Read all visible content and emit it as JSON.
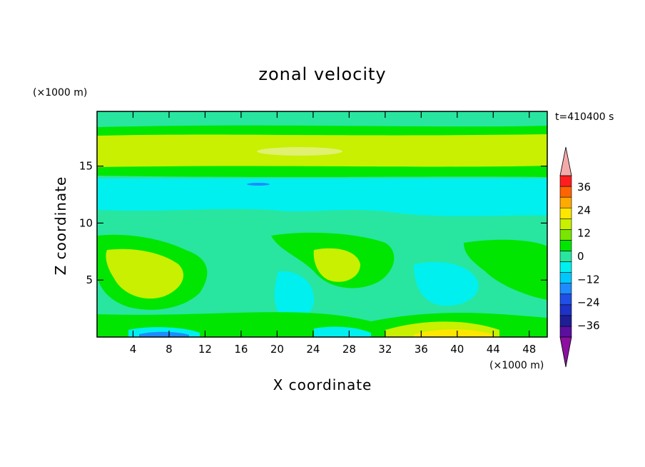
{
  "chart_data": {
    "type": "heatmap",
    "title": "zonal velocity",
    "xlabel": "X coordinate",
    "ylabel": "Z coordinate",
    "x_unit": "(×1000 m)",
    "y_unit": "(×1000 m)",
    "time_label": "t=410400 s",
    "xlim": [
      0,
      50
    ],
    "ylim": [
      0,
      19.8
    ],
    "x_ticks": [
      4,
      8,
      12,
      16,
      20,
      24,
      28,
      32,
      36,
      40,
      44,
      48
    ],
    "y_ticks": [
      5,
      10,
      15
    ],
    "colorbar": {
      "levels": [
        -42,
        -36,
        -30,
        -24,
        -18,
        -12,
        -6,
        0,
        6,
        12,
        18,
        24,
        30,
        36,
        42
      ],
      "tick_values": [
        -36,
        -24,
        -12,
        0,
        12,
        24,
        36
      ],
      "tick_labels": [
        "−36",
        "−24",
        "−12",
        "0",
        "12",
        "24",
        "36"
      ],
      "colors": [
        "#5a0fa0",
        "#1e1e96",
        "#1e32c8",
        "#1e50e6",
        "#1e8cff",
        "#00c8ff",
        "#00f0f0",
        "#28e6a0",
        "#00e600",
        "#78e600",
        "#c8f000",
        "#ffe600",
        "#ffaa00",
        "#ff6400",
        "#ff1e1e"
      ],
      "under_color": "#8c0fa0",
      "over_color": "#f5aaaa"
    },
    "contour_colors": {
      "cyan": "#00f0f0",
      "teal": "#28e6a0",
      "green": "#00e600",
      "lightgreen": "#78e600",
      "yellowgreen": "#c8f000",
      "yellow": "#ffe600",
      "blue": "#1e8cff"
    }
  }
}
